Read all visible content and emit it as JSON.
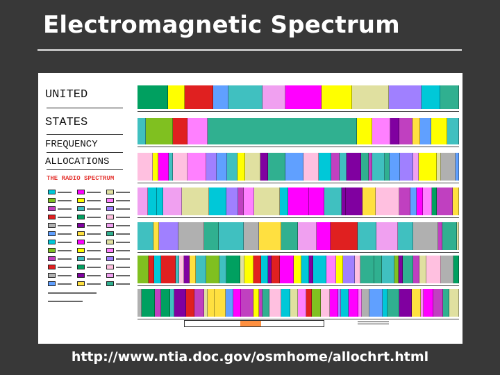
{
  "slide": {
    "title": "Electromagnetic Spectrum",
    "url": "http://www.ntia.doc.gov/osmhome/allochrt.html"
  },
  "chart": {
    "heading": [
      "UNITED",
      "STATES",
      "FREQUENCY",
      "ALLOCATIONS"
    ],
    "subheading": "THE RADIO SPECTRUM"
  },
  "palette": [
    "#00c8d8",
    "#ff00ff",
    "#e0e0a0",
    "#80c020",
    "#ffff00",
    "#ff80ff",
    "#c040c0",
    "#40c0c0",
    "#a080ff",
    "#e02020",
    "#00a060",
    "#ffc0e0",
    "#b0b0b0",
    "#8000a0",
    "#f0a0f0",
    "#60a0ff",
    "#ffe040",
    "#30b090"
  ]
}
